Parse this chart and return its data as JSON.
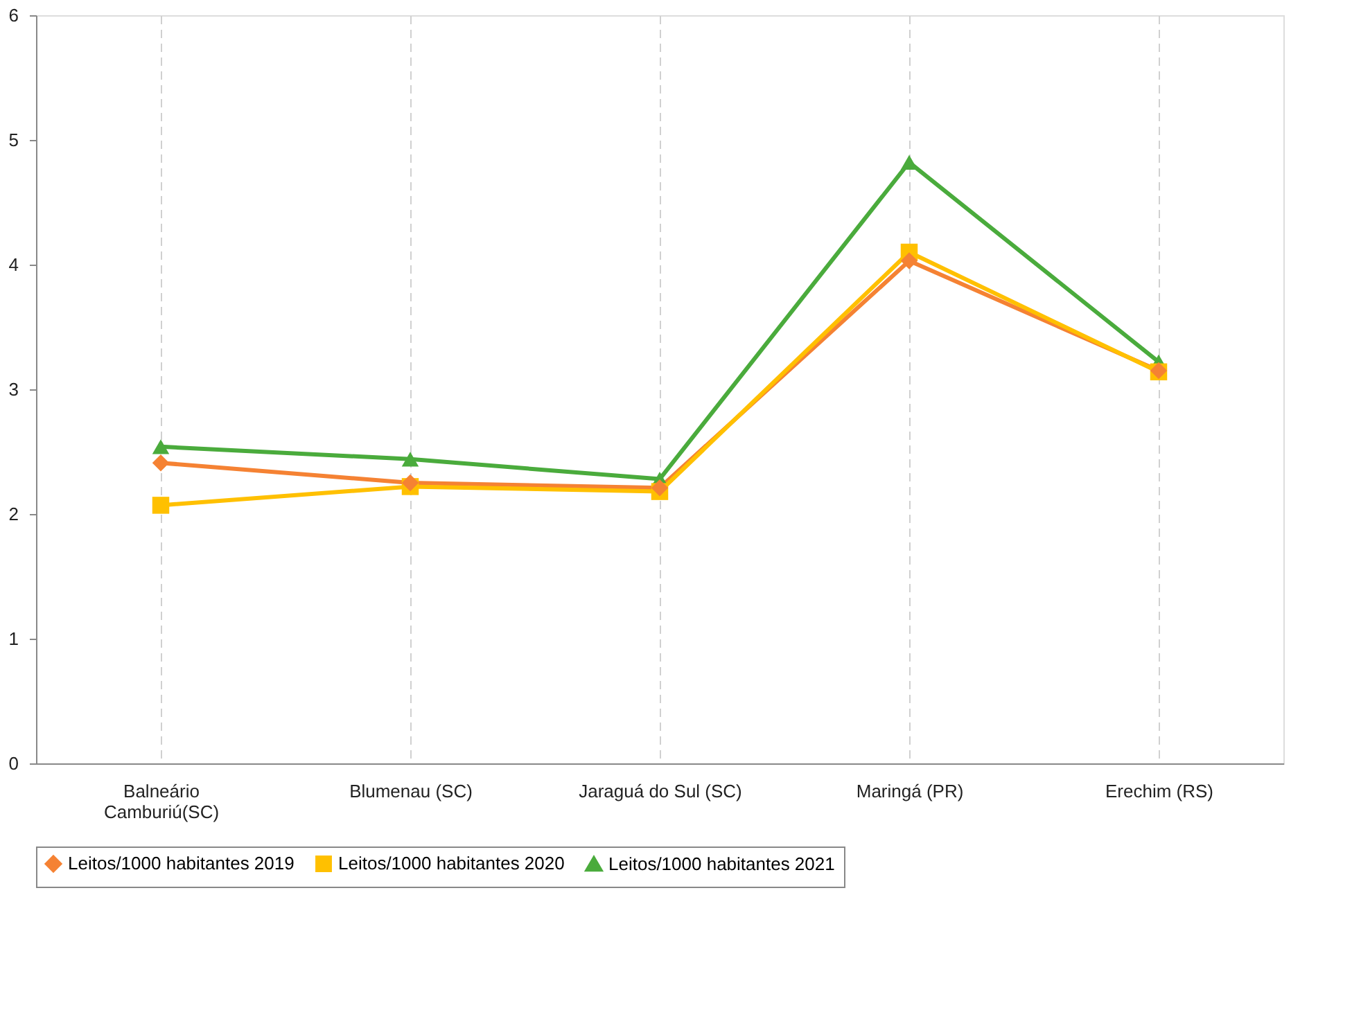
{
  "chart_data": {
    "type": "line",
    "categories": [
      "Balneário Camburiú(SC)",
      "Blumenau (SC)",
      "Jaraguá do Sul (SC)",
      "Maringá (PR)",
      "Erechim (RS)"
    ],
    "series": [
      {
        "name": "Leitos/1000 habitantes 2019",
        "color": "#f58233",
        "marker": "diamond",
        "values": [
          2.41,
          2.25,
          2.21,
          4.03,
          3.15
        ]
      },
      {
        "name": "Leitos/1000 habitantes 2020",
        "color": "#ffc000",
        "marker": "square",
        "values": [
          2.07,
          2.22,
          2.18,
          4.1,
          3.14
        ]
      },
      {
        "name": "Leitos/1000 habitantes 2021",
        "color": "#4aab3c",
        "marker": "triangle",
        "values": [
          2.54,
          2.44,
          2.28,
          4.82,
          3.22
        ]
      }
    ],
    "ylim": [
      0,
      6
    ],
    "yticks": [
      0,
      1,
      2,
      3,
      4,
      5,
      6
    ],
    "grid": "x",
    "legend": "bottom"
  }
}
